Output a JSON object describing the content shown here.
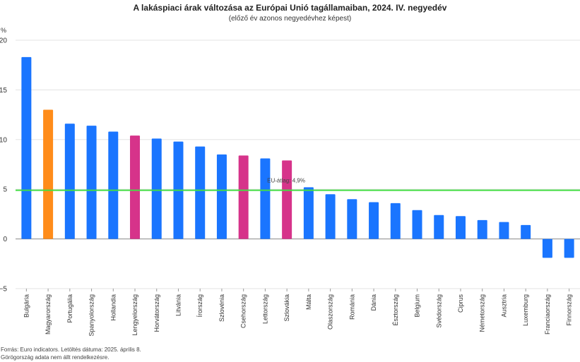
{
  "chart_data": {
    "type": "bar",
    "title": "A lakáspiaci árak változása az Európai Unió tagállamaiban, 2024. IV. negyedév",
    "subtitle": "(előző év azonos negyedévhez képest)",
    "ylabel": "%",
    "ylim": [
      -5,
      20
    ],
    "yticks": [
      20,
      15,
      10,
      5,
      0,
      -5
    ],
    "grid": true,
    "categories": [
      "Bulgária",
      "Magyarország",
      "Portugália",
      "Spanyolország",
      "Hollandia",
      "Lengyelország",
      "Horvátország",
      "Litvánia",
      "Írország",
      "Szlovénia",
      "Csehország",
      "Lettország",
      "Szlovákia",
      "Málta",
      "Olaszország",
      "Románia",
      "Dánia",
      "Észtország",
      "Belgium",
      "Svédország",
      "Ciprus",
      "Németország",
      "Ausztria",
      "Luxemburg",
      "Franciaország",
      "Finnország"
    ],
    "values": [
      18.3,
      13.0,
      11.6,
      11.4,
      10.8,
      10.4,
      10.1,
      9.8,
      9.3,
      8.5,
      8.4,
      8.1,
      7.9,
      5.2,
      4.5,
      4.0,
      3.7,
      3.6,
      2.9,
      2.4,
      2.3,
      1.9,
      1.7,
      1.4,
      -1.9,
      -1.9
    ],
    "colors": [
      "#1a75ff",
      "#ff8c1a",
      "#1a75ff",
      "#1a75ff",
      "#1a75ff",
      "#d6338a",
      "#1a75ff",
      "#1a75ff",
      "#1a75ff",
      "#1a75ff",
      "#d6338a",
      "#1a75ff",
      "#d6338a",
      "#1a75ff",
      "#1a75ff",
      "#1a75ff",
      "#1a75ff",
      "#1a75ff",
      "#1a75ff",
      "#1a75ff",
      "#1a75ff",
      "#1a75ff",
      "#1a75ff",
      "#1a75ff",
      "#1a75ff",
      "#1a75ff"
    ],
    "reference_line": {
      "value": 4.9,
      "label": "EU-átlag: 4,9%",
      "color": "#44dd44"
    }
  },
  "footer": {
    "source": "Forrás: Euro indicators. Letöltés dátuma: 2025. április 8.",
    "note": "Görögország adata nem állt rendelkezésre."
  }
}
